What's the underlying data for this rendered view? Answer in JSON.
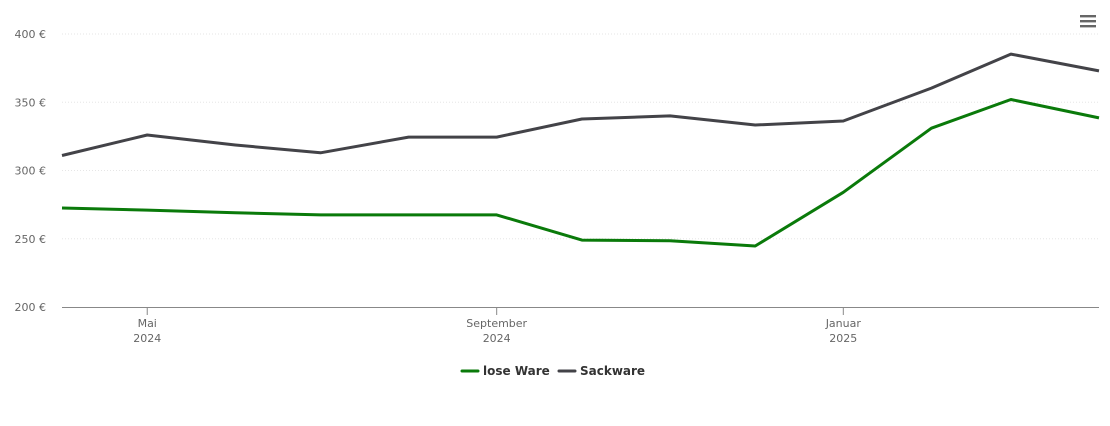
{
  "chart_data": {
    "type": "line",
    "x": [
      "2024-04",
      "2024-05",
      "2024-06",
      "2024-07",
      "2024-08",
      "2024-09",
      "2024-10",
      "2024-11",
      "2024-12",
      "2025-01",
      "2025-02",
      "2025-03",
      "2025-04"
    ],
    "series": [
      {
        "name": "lose Ware",
        "color": "#0a7a0a",
        "values": [
          272.5,
          271,
          269,
          267.5,
          267.5,
          267.5,
          249,
          248.5,
          244.7,
          284,
          331,
          352,
          338.5
        ]
      },
      {
        "name": "Sackware",
        "color": "#434348",
        "values": [
          311,
          326,
          318.7,
          313,
          324.5,
          324.5,
          337.7,
          340,
          333.3,
          336.3,
          360.4,
          385.3,
          373
        ]
      }
    ],
    "xlim": [
      "2024-04",
      "2025-04"
    ],
    "xticks": [
      {
        "value": "2024-05",
        "label": "Mai",
        "label2": "2024"
      },
      {
        "value": "2024-09",
        "label": "September",
        "label2": "2024"
      },
      {
        "value": "2025-01",
        "label": "Januar",
        "label2": "2025"
      }
    ],
    "ylim": [
      200,
      400
    ],
    "yticks": [
      {
        "value": 200,
        "label": "200 €"
      },
      {
        "value": 250,
        "label": "250 €"
      },
      {
        "value": 300,
        "label": "300 €"
      },
      {
        "value": 350,
        "label": "350 €"
      },
      {
        "value": 400,
        "label": "400 €"
      }
    ],
    "grid": true,
    "legend": "bottom"
  }
}
